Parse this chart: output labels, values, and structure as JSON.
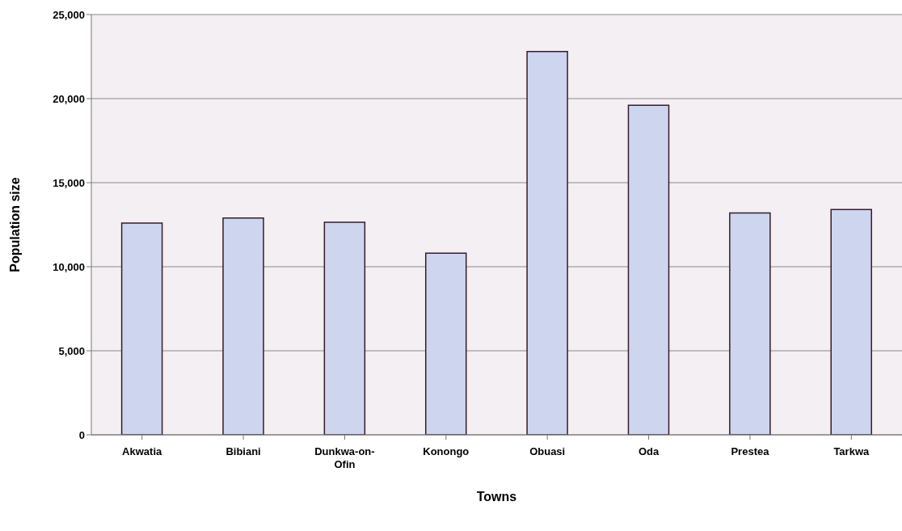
{
  "chart_data": {
    "type": "bar",
    "xlabel": "Towns",
    "ylabel": "Population size",
    "categories": [
      "Akwatia",
      "Bibiani",
      "Dunkwa-on-Ofin",
      "Konongo",
      "Obuasi",
      "Oda",
      "Prestea",
      "Tarkwa"
    ],
    "values": [
      12600,
      12900,
      12650,
      10800,
      22800,
      19600,
      13200,
      13400
    ],
    "color": "#cdd6ee",
    "ylim": [
      0,
      25000
    ],
    "yticks": [
      0,
      {
        "value": 5000,
        "label": "5,000"
      },
      {
        "value": 10000,
        "label": "10,000"
      },
      {
        "value": 15000,
        "label": "15,000"
      },
      {
        "value": 20000,
        "label": "20,000"
      },
      {
        "value": 25000,
        "label": "25,000"
      }
    ],
    "grid": "y",
    "legend": false
  }
}
